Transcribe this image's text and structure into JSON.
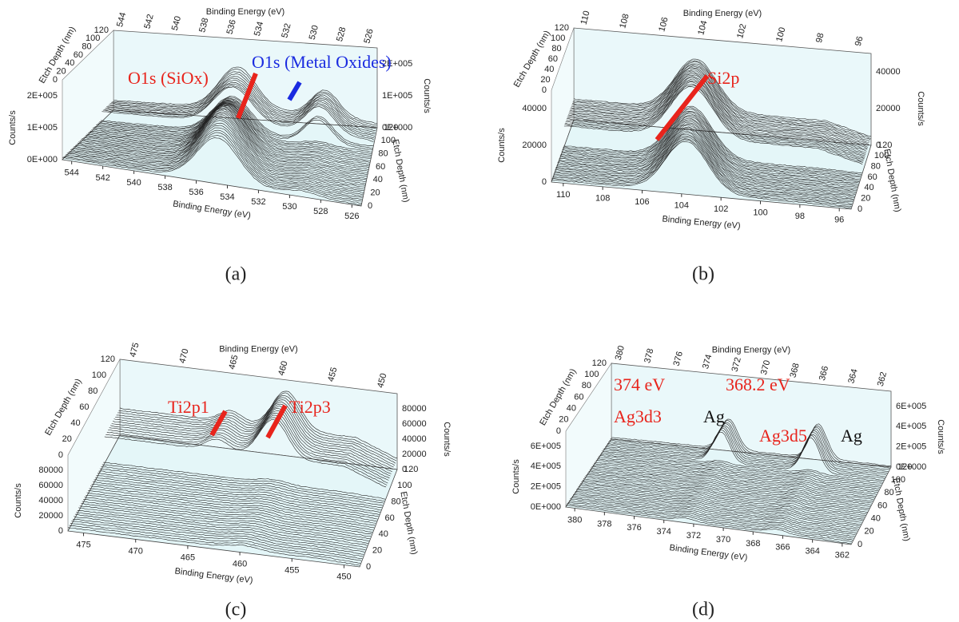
{
  "panels": [
    {
      "caption": "(a)",
      "x_title": "Binding Energy (eV)",
      "x_ticks": [
        544,
        542,
        540,
        538,
        536,
        534,
        532,
        530,
        528,
        526
      ],
      "y_title": "Counts/s",
      "y_ticks": [
        "0E+000",
        "1E+005",
        "2E+005"
      ],
      "depth_title": "Etch Depth (nm)",
      "depth_ticks": [
        0,
        20,
        40,
        60,
        80,
        100,
        120
      ],
      "annotations": [
        {
          "text": "O1s (SiOx)",
          "color": "#e8241c"
        },
        {
          "text": "O1s (Metal Oxides)",
          "color": "#1a2be0"
        }
      ]
    },
    {
      "caption": "(b)",
      "x_title": "Binding Energy (eV)",
      "x_ticks": [
        110,
        108,
        106,
        104,
        102,
        100,
        98,
        96
      ],
      "y_title": "Counts/s",
      "y_ticks": [
        0,
        20000,
        40000
      ],
      "depth_title": "Etch Depth (nm)",
      "depth_ticks": [
        0,
        20,
        40,
        60,
        80,
        100,
        120
      ],
      "annotations": [
        {
          "text": "Si2p",
          "color": "#e8241c"
        }
      ]
    },
    {
      "caption": "(c)",
      "x_title": "Binding Energy (eV)",
      "x_ticks": [
        475,
        470,
        465,
        460,
        455,
        450
      ],
      "y_title": "Counts/s",
      "y_ticks": [
        0,
        20000,
        40000,
        60000,
        80000
      ],
      "depth_title": "Etch Depth (nm)",
      "depth_ticks": [
        0,
        20,
        40,
        60,
        80,
        100,
        120
      ],
      "annotations": [
        {
          "text": "Ti2p1",
          "color": "#e8241c"
        },
        {
          "text": "Ti2p3",
          "color": "#e8241c"
        }
      ]
    },
    {
      "caption": "(d)",
      "x_title": "Binding Energy (eV)",
      "x_ticks": [
        380,
        378,
        376,
        374,
        372,
        370,
        368,
        366,
        364,
        362
      ],
      "y_title": "Counts/s",
      "y_ticks": [
        "0E+000",
        "2E+005",
        "4E+005",
        "6E+005"
      ],
      "depth_title": "Etch Depth (nm)",
      "depth_ticks": [
        0,
        20,
        40,
        60,
        80,
        100,
        120
      ],
      "annotations": [
        {
          "text": "374 eV",
          "color": "#e8241c"
        },
        {
          "text": "Ag3d3",
          "color": "#e8241c"
        },
        {
          "text": "Ag",
          "color": "#111111"
        },
        {
          "text": "368.2 eV",
          "color": "#e8241c"
        },
        {
          "text": "Ag3d5",
          "color": "#e8241c"
        },
        {
          "text": "Ag",
          "color": "#111111"
        }
      ]
    }
  ]
}
